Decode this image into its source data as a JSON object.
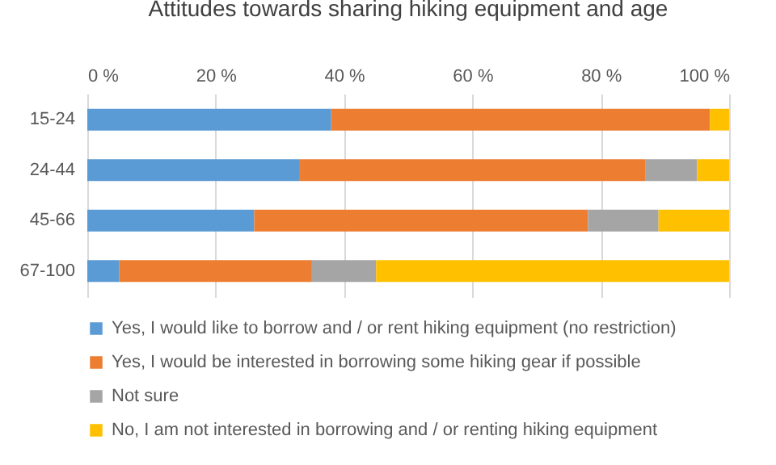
{
  "chart_data": {
    "type": "bar",
    "orientation": "horizontal",
    "stacked": true,
    "title": "Attitudes towards sharing hiking equipment and age",
    "categories": [
      "15-24",
      "24-44",
      "45-66",
      "67-100"
    ],
    "series": [
      {
        "name": "Yes, I would like to borrow and / or rent hiking equipment (no restriction)",
        "color": "#5b9bd5",
        "values": [
          38,
          33,
          26,
          5
        ]
      },
      {
        "name": "Yes, I would be interested in borrowing some hiking gear if possible",
        "color": "#ed7d31",
        "values": [
          59,
          54,
          52,
          30
        ]
      },
      {
        "name": "Not sure",
        "color": "#a5a5a5",
        "values": [
          0,
          8,
          11,
          10
        ]
      },
      {
        "name": "No, I am not interested in borrowing and / or renting hiking equipment",
        "color": "#ffc000",
        "values": [
          3,
          5,
          11,
          55
        ]
      }
    ],
    "xlim": [
      0,
      100
    ],
    "xticks": [
      {
        "value": 0,
        "label": "0 %"
      },
      {
        "value": 20,
        "label": "20 %"
      },
      {
        "value": 40,
        "label": "40 %"
      },
      {
        "value": 60,
        "label": "60 %"
      },
      {
        "value": 80,
        "label": "80 %"
      },
      {
        "value": 100,
        "label": "100 %"
      }
    ],
    "grid": "x",
    "legend": "bottom"
  }
}
